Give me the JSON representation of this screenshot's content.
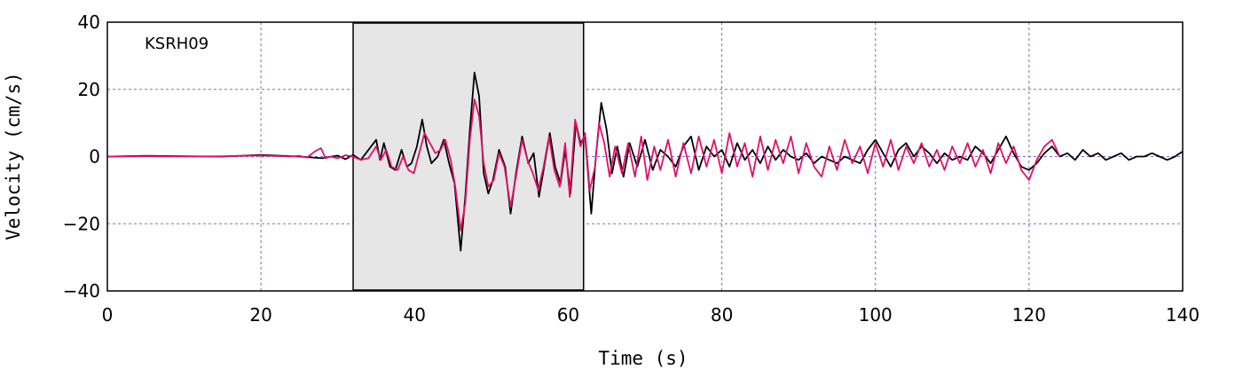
{
  "chart_data": {
    "type": "line",
    "title": "",
    "station_label": "KSRH09",
    "xlabel": "Time (s)",
    "ylabel": "Velocity (cm/s)",
    "xlim": [
      0,
      140
    ],
    "ylim": [
      -40,
      40
    ],
    "x_ticks": [
      0,
      20,
      40,
      60,
      80,
      100,
      120,
      140
    ],
    "y_ticks": [
      40,
      20,
      0,
      -20,
      -40
    ],
    "grid": true,
    "highlight_window": [
      32,
      62
    ],
    "colors": {
      "observed": "#000000",
      "simulated": "#e0106a",
      "grid": "#7070d0",
      "window_fill": "#e6e6e6"
    },
    "series": [
      {
        "color": "#000000",
        "points": [
          [
            0,
            0
          ],
          [
            5,
            0.2
          ],
          [
            10,
            0.1
          ],
          [
            15,
            0
          ],
          [
            20,
            0.5
          ],
          [
            22,
            0.3
          ],
          [
            25,
            0
          ],
          [
            28,
            -0.5
          ],
          [
            30,
            0.3
          ],
          [
            31,
            -0.8
          ],
          [
            32,
            0.5
          ],
          [
            33,
            -1
          ],
          [
            34,
            2
          ],
          [
            35,
            5
          ],
          [
            35.5,
            -1
          ],
          [
            36,
            4
          ],
          [
            36.8,
            -3
          ],
          [
            37.5,
            -4
          ],
          [
            38.3,
            2
          ],
          [
            39,
            -3
          ],
          [
            39.6,
            -2
          ],
          [
            40.3,
            3
          ],
          [
            41,
            11
          ],
          [
            41.6,
            3
          ],
          [
            42.2,
            -2
          ],
          [
            43,
            0
          ],
          [
            43.8,
            5
          ],
          [
            44.5,
            -2
          ],
          [
            45.2,
            -8
          ],
          [
            46,
            -28
          ],
          [
            46.6,
            -12
          ],
          [
            47.2,
            8
          ],
          [
            47.8,
            25
          ],
          [
            48.4,
            18
          ],
          [
            49,
            -5
          ],
          [
            49.6,
            -11
          ],
          [
            50.2,
            -7
          ],
          [
            51,
            2
          ],
          [
            51.8,
            -3
          ],
          [
            52.5,
            -17
          ],
          [
            53.2,
            -5
          ],
          [
            54,
            6
          ],
          [
            54.8,
            -2
          ],
          [
            55.5,
            1
          ],
          [
            56.2,
            -12
          ],
          [
            56.8,
            -4
          ],
          [
            57.6,
            7
          ],
          [
            58.3,
            -3
          ],
          [
            59,
            -8
          ],
          [
            59.6,
            2
          ],
          [
            60.3,
            -11
          ],
          [
            61,
            10
          ],
          [
            61.6,
            4
          ],
          [
            62.2,
            6
          ],
          [
            63,
            -17
          ],
          [
            63.6,
            0
          ],
          [
            64.3,
            16
          ],
          [
            65,
            8
          ],
          [
            65.7,
            -5
          ],
          [
            66.4,
            3
          ],
          [
            67.2,
            -6
          ],
          [
            68,
            4
          ],
          [
            69,
            -3
          ],
          [
            70,
            5
          ],
          [
            71,
            -4
          ],
          [
            72,
            2
          ],
          [
            73,
            0
          ],
          [
            74,
            -3
          ],
          [
            75,
            3
          ],
          [
            76,
            6
          ],
          [
            77,
            -4
          ],
          [
            78,
            3
          ],
          [
            79,
            0
          ],
          [
            80,
            2
          ],
          [
            81,
            -3
          ],
          [
            82,
            4
          ],
          [
            83,
            -1
          ],
          [
            84,
            2
          ],
          [
            85,
            -2
          ],
          [
            86,
            3
          ],
          [
            87,
            -1
          ],
          [
            88,
            2
          ],
          [
            89,
            0
          ],
          [
            90,
            -1
          ],
          [
            91,
            1
          ],
          [
            92,
            -2
          ],
          [
            93,
            0
          ],
          [
            94,
            -1
          ],
          [
            95,
            -2
          ],
          [
            96,
            0
          ],
          [
            97,
            -1
          ],
          [
            98,
            -2
          ],
          [
            99,
            2
          ],
          [
            100,
            5
          ],
          [
            101,
            1
          ],
          [
            102,
            -3
          ],
          [
            103,
            2
          ],
          [
            104,
            4
          ],
          [
            105,
            0
          ],
          [
            106,
            3
          ],
          [
            107,
            1
          ],
          [
            108,
            -2
          ],
          [
            109,
            1
          ],
          [
            110,
            -1
          ],
          [
            111,
            0
          ],
          [
            112,
            -1
          ],
          [
            113,
            3
          ],
          [
            114,
            1
          ],
          [
            115,
            -2
          ],
          [
            116,
            2
          ],
          [
            117,
            6
          ],
          [
            118,
            1
          ],
          [
            119,
            -3
          ],
          [
            120,
            -4
          ],
          [
            121,
            -2
          ],
          [
            122,
            1
          ],
          [
            123,
            3
          ],
          [
            124,
            0
          ],
          [
            125,
            1
          ],
          [
            126,
            -1
          ],
          [
            127,
            2
          ],
          [
            128,
            0
          ],
          [
            129,
            1
          ],
          [
            130,
            -1
          ],
          [
            131,
            0
          ],
          [
            132,
            1
          ],
          [
            133,
            -1
          ],
          [
            134,
            0
          ],
          [
            135,
            0
          ],
          [
            136,
            1
          ],
          [
            137,
            0
          ],
          [
            138,
            -1
          ],
          [
            139,
            0
          ],
          [
            140,
            1.5
          ]
        ]
      },
      {
        "color": "#e0106a",
        "points": [
          [
            0,
            0
          ],
          [
            5,
            0.1
          ],
          [
            10,
            0
          ],
          [
            15,
            0.1
          ],
          [
            20,
            0.3
          ],
          [
            24,
            0
          ],
          [
            25,
            0.2
          ],
          [
            26,
            -0.3
          ],
          [
            27,
            1.5
          ],
          [
            27.8,
            2.5
          ],
          [
            28.4,
            -0.5
          ],
          [
            29,
            0
          ],
          [
            30,
            -0.5
          ],
          [
            31,
            0.4
          ],
          [
            32,
            0
          ],
          [
            33,
            -1
          ],
          [
            34,
            -0.5
          ],
          [
            35,
            3
          ],
          [
            35.6,
            -1
          ],
          [
            36.3,
            2
          ],
          [
            37,
            -3
          ],
          [
            37.8,
            -4
          ],
          [
            38.5,
            0
          ],
          [
            39.2,
            -4
          ],
          [
            39.9,
            -5
          ],
          [
            40.6,
            1
          ],
          [
            41.3,
            7
          ],
          [
            42,
            4
          ],
          [
            42.7,
            1
          ],
          [
            43.4,
            2
          ],
          [
            44,
            5
          ],
          [
            44.7,
            -1
          ],
          [
            45.3,
            -9
          ],
          [
            46,
            -22
          ],
          [
            46.6,
            -14
          ],
          [
            47.2,
            5
          ],
          [
            47.8,
            17
          ],
          [
            48.4,
            12
          ],
          [
            49,
            -2
          ],
          [
            49.6,
            -9
          ],
          [
            50.3,
            -7
          ],
          [
            51,
            1
          ],
          [
            51.7,
            -3
          ],
          [
            52.5,
            -15
          ],
          [
            53.2,
            -6
          ],
          [
            54,
            5
          ],
          [
            54.7,
            -1
          ],
          [
            55.4,
            -5
          ],
          [
            56.1,
            -10
          ],
          [
            56.8,
            -3
          ],
          [
            57.5,
            6
          ],
          [
            58.2,
            -4
          ],
          [
            58.9,
            -9
          ],
          [
            59.6,
            4
          ],
          [
            60.2,
            -12
          ],
          [
            60.9,
            11
          ],
          [
            61.6,
            3
          ],
          [
            62.2,
            7
          ],
          [
            62.8,
            -10
          ],
          [
            63.5,
            -3
          ],
          [
            64,
            10
          ],
          [
            64.7,
            4
          ],
          [
            65.4,
            -6
          ],
          [
            66.1,
            3
          ],
          [
            67,
            -5
          ],
          [
            67.8,
            4
          ],
          [
            68.7,
            -6
          ],
          [
            69.5,
            6
          ],
          [
            70.3,
            -7
          ],
          [
            71.2,
            3
          ],
          [
            72,
            -4
          ],
          [
            73,
            5
          ],
          [
            74,
            -6
          ],
          [
            75,
            4
          ],
          [
            76,
            -5
          ],
          [
            77,
            6
          ],
          [
            78,
            -3
          ],
          [
            79,
            5
          ],
          [
            80,
            -5
          ],
          [
            81,
            7
          ],
          [
            82,
            -3
          ],
          [
            83,
            4
          ],
          [
            84,
            -6
          ],
          [
            85,
            6
          ],
          [
            86,
            -4
          ],
          [
            87,
            5
          ],
          [
            88,
            -2
          ],
          [
            89,
            6
          ],
          [
            90,
            -5
          ],
          [
            91,
            4
          ],
          [
            92,
            -3
          ],
          [
            93,
            -6
          ],
          [
            94,
            3
          ],
          [
            95,
            -4
          ],
          [
            96,
            5
          ],
          [
            97,
            -2
          ],
          [
            98,
            3
          ],
          [
            99,
            -5
          ],
          [
            100,
            4
          ],
          [
            101,
            -3
          ],
          [
            102,
            5
          ],
          [
            103,
            -4
          ],
          [
            104,
            3
          ],
          [
            105,
            -2
          ],
          [
            106,
            4
          ],
          [
            107,
            -3
          ],
          [
            108,
            2
          ],
          [
            109,
            -4
          ],
          [
            110,
            3
          ],
          [
            111,
            -2
          ],
          [
            112,
            4
          ],
          [
            113,
            -3
          ],
          [
            114,
            2
          ],
          [
            115,
            -5
          ],
          [
            116,
            4
          ],
          [
            117,
            -2
          ],
          [
            118,
            3
          ],
          [
            119,
            -4
          ],
          [
            120,
            -7
          ],
          [
            121,
            -1
          ],
          [
            122,
            3
          ],
          [
            123,
            5
          ],
          [
            124,
            0
          ]
        ]
      }
    ]
  }
}
